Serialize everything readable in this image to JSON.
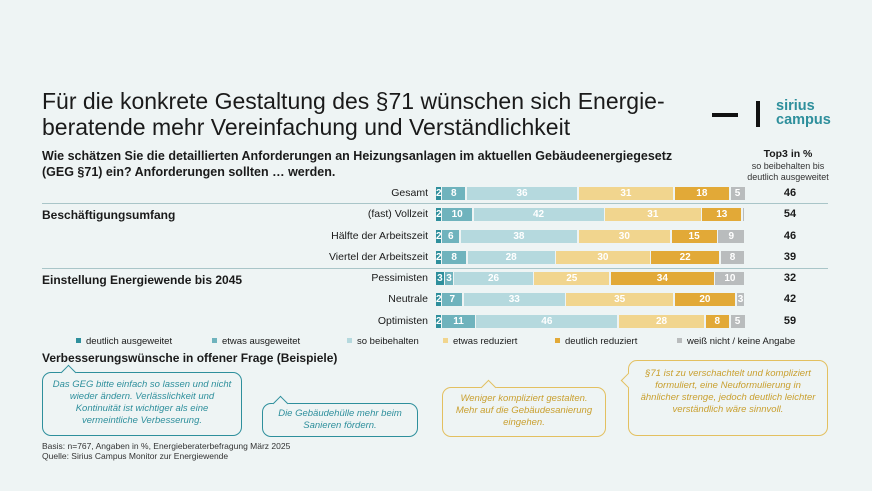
{
  "title": "Für die konkrete Gestaltung des §71 wünschen sich Energie-beratende mehr Vereinfachung und Verständlichkeit",
  "subtitle": "Wie schätzen Sie die detaillierten Anforderungen an Heizungsanlagen im aktuellen Gebäudeenergiegesetz (GEG §71) ein? Anforderungen sollten … werden.",
  "logo": {
    "line1": "sirius",
    "line2": "campus"
  },
  "top3_header": {
    "title": "Top3 in %",
    "sub": "so beibehalten bis deutlich ausgeweitet"
  },
  "groups": [
    "Beschäftigungsumfang",
    "Einstellung Energiewende bis 2045"
  ],
  "section_title": "Verbesserungswünsche in offener Frage (Beispiele)",
  "quotes": [
    "Das GEG bitte einfach so lassen und nicht wieder ändern. Verlässlichkeit und Kontinuität ist wichtiger als eine vermeintliche Verbesserung.",
    "Die Gebäudehülle mehr beim Sanieren fördern.",
    "Weniger kompliziert gestalten. Mehr auf die Gebäudesanierung eingehen.",
    "§71 ist zu verschachtelt und kompliziert formuliert, eine Neuformulierung in ähnlicher strenge, jedoch deutlich leichter verständlich wäre sinnvoll."
  ],
  "notes": {
    "basis": "Basis: n=767, Angaben in %, Energieberaterbefragung März 2025",
    "source": "Quelle: Sirius Campus Monitor zur Energiewende"
  },
  "chart_data": {
    "type": "bar",
    "orientation": "horizontal-stacked-100",
    "categories": [
      "Gesamt",
      "(fast) Vollzeit",
      "Hälfte der Arbeitszeit",
      "Viertel der Arbeitszeit",
      "Pessimisten",
      "Neutrale",
      "Optimisten"
    ],
    "series": [
      {
        "name": "deutlich ausgeweitet",
        "color": "#2e8f9c",
        "values": [
          2,
          2,
          2,
          2,
          3,
          2,
          2
        ]
      },
      {
        "name": "etwas ausgeweitet",
        "color": "#6fb3bd",
        "values": [
          8,
          10,
          6,
          8,
          3,
          7,
          11
        ]
      },
      {
        "name": "so beibehalten",
        "color": "#b5d9de",
        "values": [
          36,
          42,
          38,
          28,
          26,
          33,
          46
        ]
      },
      {
        "name": "etwas reduziert",
        "color": "#f1d58e",
        "values": [
          31,
          31,
          30,
          30,
          25,
          35,
          28
        ]
      },
      {
        "name": "deutlich reduziert",
        "color": "#e2a937",
        "values": [
          18,
          13,
          15,
          22,
          34,
          20,
          8
        ]
      },
      {
        "name": "weiß nicht / keine Angabe",
        "color": "#b9bcbd",
        "values": [
          5,
          1,
          9,
          8,
          10,
          3,
          5
        ]
      }
    ],
    "top3": [
      46,
      54,
      46,
      39,
      32,
      42,
      59
    ],
    "hidden_labels": {
      "1": [
        5
      ]
    },
    "dark_text_series": [
      2,
      3
    ]
  }
}
